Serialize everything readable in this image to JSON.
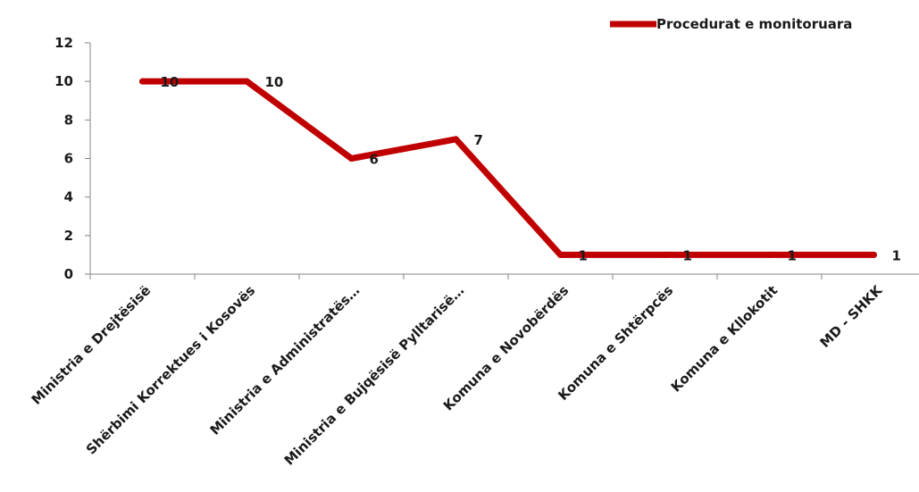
{
  "chart_data": {
    "type": "line",
    "categories": [
      "Ministria e Drejtësisë",
      "Shërbimi Korrektues i Kosovës",
      "Ministria e Administratës…",
      "Ministria e Bujqësisë Pylltarisë…",
      "Komuna e Novobërdës",
      "Komuna e Shtërpcës",
      "Komuna e Kllokotit",
      "MD - SHKK"
    ],
    "series": [
      {
        "name": "Procedurat e monitoruara",
        "values": [
          10,
          10,
          6,
          7,
          1,
          1,
          1,
          1
        ],
        "color": "#c00000"
      }
    ],
    "data_labels": [
      "10",
      "10",
      "6",
      "7",
      "1",
      "1",
      "1",
      "1"
    ],
    "yticks": [
      "0",
      "2",
      "4",
      "6",
      "8",
      "10",
      "12"
    ],
    "ylim": [
      0,
      12
    ],
    "grid": false,
    "legend_position": "top-right"
  }
}
